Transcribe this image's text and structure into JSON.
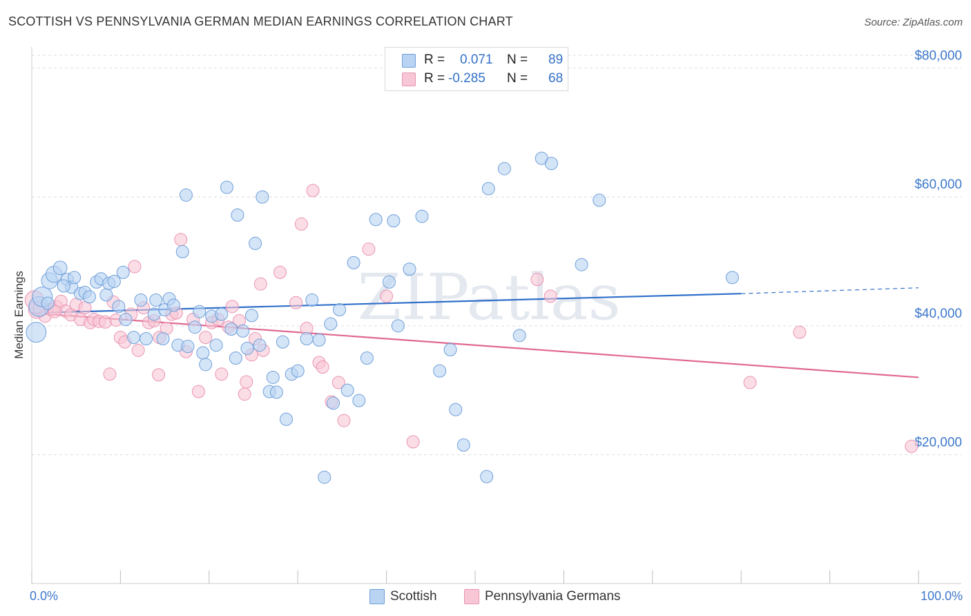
{
  "title": "SCOTTISH VS PENNSYLVANIA GERMAN MEDIAN EARNINGS CORRELATION CHART",
  "source": "Source: ZipAtlas.com",
  "watermark": "ZIPatlas",
  "legend": {
    "r_label": "R =",
    "n_label": "N =",
    "series": [
      {
        "name": "Scottish",
        "r": "0.071",
        "n": "89"
      },
      {
        "name": "Pennsylvania Germans",
        "r": "-0.285",
        "n": "68"
      }
    ]
  },
  "colors": {
    "scottish_fill": "#b9d3f3",
    "scottish_stroke": "#6f9fd8",
    "scottish_line": "#2f6fca",
    "pa_fill": "#f8c7d6",
    "pa_stroke": "#e994b2",
    "pa_line": "#e06890",
    "grid": "#dddddd",
    "axis_text": "#3d78cc"
  },
  "chart_data": {
    "type": "scatter",
    "title": "SCOTTISH VS PENNSYLVANIA GERMAN MEDIAN EARNINGS CORRELATION CHART",
    "xlabel": "",
    "ylabel": "Median Earnings",
    "xlim": [
      0,
      100
    ],
    "ylim": [
      0,
      82000
    ],
    "x_tick_labels": [
      "0.0%",
      "100.0%"
    ],
    "y_ticks": [
      20000,
      40000,
      60000,
      80000
    ],
    "y_tick_labels": [
      "$20,000",
      "$40,000",
      "$60,000",
      "$80,000"
    ],
    "grid": true,
    "series": [
      {
        "name": "Scottish",
        "r": 0.071,
        "n": 89,
        "trend": {
          "x0": 0,
          "y0": 42000,
          "x1": 80,
          "y1": 45000,
          "dashed_to_x": 100,
          "dashed_to_y": 45900
        },
        "points": [
          [
            0.5,
            39000,
            1.6
          ],
          [
            0.8,
            43000,
            1.6
          ],
          [
            1.2,
            44500,
            1.6
          ],
          [
            2.0,
            47000,
            1.3
          ],
          [
            2.5,
            48000,
            1.3
          ],
          [
            3.2,
            49000,
            1.1
          ],
          [
            4.0,
            47200,
            1.0
          ],
          [
            4.5,
            46000,
            1.0
          ],
          [
            4.8,
            47500,
            1.0
          ],
          [
            5.5,
            45000,
            1.0
          ],
          [
            6.0,
            45200,
            1.0
          ],
          [
            6.5,
            44500,
            1.0
          ],
          [
            7.3,
            46800,
            1.0
          ],
          [
            7.8,
            47300,
            1.0
          ],
          [
            8.4,
            44800,
            1.0
          ],
          [
            8.7,
            46600,
            1.0
          ],
          [
            9.3,
            46900,
            1.0
          ],
          [
            10.3,
            48300,
            1.0
          ],
          [
            9.8,
            43000,
            1.0
          ],
          [
            10.6,
            41000,
            1.0
          ],
          [
            11.5,
            38200,
            1.0
          ],
          [
            12.3,
            44000,
            1.0
          ],
          [
            12.9,
            38000,
            1.0
          ],
          [
            13.8,
            41800,
            1.0
          ],
          [
            14.0,
            44000,
            1.0
          ],
          [
            15.0,
            42500,
            1.0
          ],
          [
            14.8,
            38000,
            1.0
          ],
          [
            15.5,
            44200,
            1.0
          ],
          [
            16.0,
            43200,
            1.0
          ],
          [
            16.5,
            37000,
            1.0
          ],
          [
            17.0,
            51500,
            1.0
          ],
          [
            17.6,
            36800,
            1.0
          ],
          [
            17.4,
            60300,
            1.0
          ],
          [
            18.4,
            39800,
            1.0
          ],
          [
            18.9,
            42200,
            1.0
          ],
          [
            19.3,
            35800,
            1.0
          ],
          [
            19.6,
            34000,
            1.0
          ],
          [
            20.3,
            41500,
            1.0
          ],
          [
            20.8,
            37000,
            1.0
          ],
          [
            21.4,
            41800,
            1.0
          ],
          [
            22.0,
            61500,
            1.0
          ],
          [
            22.5,
            39500,
            1.0
          ],
          [
            23.0,
            35000,
            1.0
          ],
          [
            23.2,
            57200,
            1.0
          ],
          [
            23.8,
            39200,
            1.0
          ],
          [
            24.3,
            36500,
            1.0
          ],
          [
            24.8,
            41600,
            1.0
          ],
          [
            25.2,
            52800,
            1.0
          ],
          [
            25.7,
            37000,
            1.0
          ],
          [
            26.0,
            60000,
            1.0
          ],
          [
            26.8,
            29800,
            1.0
          ],
          [
            27.2,
            32000,
            1.0
          ],
          [
            27.6,
            29700,
            1.0
          ],
          [
            28.3,
            37500,
            1.0
          ],
          [
            28.7,
            25500,
            1.0
          ],
          [
            29.3,
            32500,
            1.0
          ],
          [
            30.0,
            33000,
            1.0
          ],
          [
            31.0,
            38000,
            1.0
          ],
          [
            31.6,
            44000,
            1.0
          ],
          [
            32.4,
            37800,
            1.0
          ],
          [
            33.0,
            16500,
            1.0
          ],
          [
            33.7,
            40300,
            1.0
          ],
          [
            34.0,
            28000,
            1.0
          ],
          [
            34.7,
            42500,
            1.0
          ],
          [
            35.6,
            30000,
            1.0
          ],
          [
            36.3,
            49800,
            1.0
          ],
          [
            36.9,
            28400,
            1.0
          ],
          [
            37.8,
            35000,
            1.0
          ],
          [
            38.8,
            56500,
            1.0
          ],
          [
            40.3,
            46800,
            1.0
          ],
          [
            40.8,
            56300,
            1.0
          ],
          [
            41.3,
            40000,
            1.0
          ],
          [
            42.6,
            48800,
            1.0
          ],
          [
            44.0,
            57000,
            1.0
          ],
          [
            46.0,
            33000,
            1.0
          ],
          [
            47.2,
            36300,
            1.0
          ],
          [
            47.8,
            27000,
            1.0
          ],
          [
            48.7,
            21500,
            1.0
          ],
          [
            51.5,
            61300,
            1.0
          ],
          [
            51.3,
            16600,
            1.0
          ],
          [
            53.3,
            64400,
            1.0
          ],
          [
            55.0,
            38500,
            1.0
          ],
          [
            57.5,
            66000,
            1.0
          ],
          [
            58.6,
            65200,
            1.0
          ],
          [
            62.0,
            49500,
            1.0
          ],
          [
            64.0,
            59500,
            1.0
          ],
          [
            79.0,
            47500,
            1.0
          ],
          [
            1.8,
            43500,
            1.0
          ],
          [
            3.6,
            46200,
            1.0
          ]
        ]
      },
      {
        "name": "Pennsylvania Germans",
        "r": -0.285,
        "n": 68,
        "trend": {
          "x0": 0,
          "y0": 42000,
          "x1": 100,
          "y1": 32000
        },
        "points": [
          [
            0.3,
            44000,
            1.5
          ],
          [
            0.6,
            42500,
            1.4
          ],
          [
            1.0,
            42700,
            1.2
          ],
          [
            1.5,
            41500,
            1.0
          ],
          [
            2.2,
            42500,
            1.0
          ],
          [
            2.8,
            43000,
            1.0
          ],
          [
            3.3,
            43800,
            1.0
          ],
          [
            3.8,
            42300,
            1.0
          ],
          [
            4.4,
            41700,
            1.0
          ],
          [
            5.0,
            43300,
            1.0
          ],
          [
            5.5,
            41000,
            1.0
          ],
          [
            6.0,
            42800,
            1.0
          ],
          [
            6.6,
            40500,
            1.0
          ],
          [
            7.0,
            41000,
            1.0
          ],
          [
            7.6,
            40700,
            1.0
          ],
          [
            8.3,
            40600,
            1.0
          ],
          [
            8.8,
            32500,
            1.0
          ],
          [
            9.2,
            43700,
            1.0
          ],
          [
            10.0,
            38200,
            1.0
          ],
          [
            10.5,
            37500,
            1.0
          ],
          [
            11.2,
            41800,
            1.0
          ],
          [
            11.6,
            49200,
            1.0
          ],
          [
            12.0,
            36200,
            1.0
          ],
          [
            12.6,
            42800,
            1.0
          ],
          [
            13.2,
            40500,
            1.0
          ],
          [
            13.8,
            40800,
            1.0
          ],
          [
            14.4,
            38200,
            1.0
          ],
          [
            14.3,
            32400,
            1.0
          ],
          [
            15.2,
            39600,
            1.0
          ],
          [
            15.8,
            41800,
            1.0
          ],
          [
            16.3,
            42000,
            1.0
          ],
          [
            16.8,
            53400,
            1.0
          ],
          [
            17.4,
            36000,
            1.0
          ],
          [
            18.2,
            41000,
            1.0
          ],
          [
            18.8,
            29800,
            1.0
          ],
          [
            19.6,
            38200,
            1.0
          ],
          [
            20.3,
            40500,
            1.0
          ],
          [
            21.0,
            41000,
            1.0
          ],
          [
            21.4,
            32500,
            1.0
          ],
          [
            22.2,
            39800,
            1.0
          ],
          [
            22.6,
            43000,
            1.0
          ],
          [
            23.4,
            40800,
            1.0
          ],
          [
            24.0,
            29400,
            1.0
          ],
          [
            24.2,
            31300,
            1.0
          ],
          [
            24.8,
            35500,
            1.0
          ],
          [
            25.2,
            38000,
            1.0
          ],
          [
            25.8,
            46500,
            1.0
          ],
          [
            26.1,
            36200,
            1.0
          ],
          [
            28.0,
            48300,
            1.0
          ],
          [
            29.8,
            43600,
            1.0
          ],
          [
            30.4,
            55800,
            1.0
          ],
          [
            31.0,
            39600,
            1.0
          ],
          [
            31.7,
            61000,
            1.0
          ],
          [
            32.4,
            34300,
            1.0
          ],
          [
            32.8,
            33600,
            1.0
          ],
          [
            33.8,
            28200,
            1.0
          ],
          [
            34.6,
            31200,
            1.0
          ],
          [
            35.2,
            25300,
            1.0
          ],
          [
            38.0,
            51900,
            1.0
          ],
          [
            40.0,
            44600,
            1.0
          ],
          [
            43.0,
            22000,
            1.0
          ],
          [
            57.0,
            47200,
            1.0
          ],
          [
            58.5,
            44600,
            1.0
          ],
          [
            81.0,
            31200,
            1.0
          ],
          [
            86.6,
            39000,
            1.0
          ],
          [
            99.2,
            21300,
            1.0
          ],
          [
            2.6,
            42200,
            1.0
          ],
          [
            9.5,
            40900,
            1.0
          ]
        ]
      }
    ]
  }
}
